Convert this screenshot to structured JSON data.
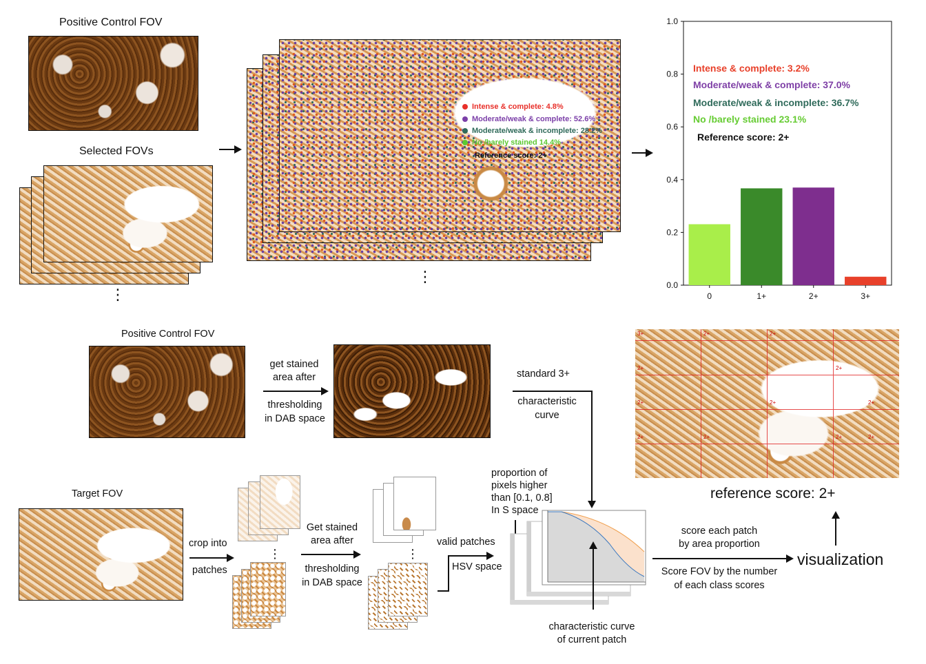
{
  "top": {
    "positive_control_title": "Positive Control FOV",
    "selected_fovs_title": "Selected FOVs",
    "ellipsis": "⋮",
    "overlay_legend": [
      {
        "label": "Intense & complete: 4.8%",
        "color": "#e8302a"
      },
      {
        "label": "Moderate/weak & complete: 52.6%",
        "color": "#7b3fa8"
      },
      {
        "label": "Moderate/weak & incomplete: 28.2%",
        "color": "#2f6a5a"
      },
      {
        "label": "No /barely stained 14.4%",
        "color": "#5cc832"
      }
    ],
    "overlay_reference": "Reference score: 2+"
  },
  "chart_data": {
    "type": "bar",
    "categories": [
      "0",
      "1+",
      "2+",
      "3+"
    ],
    "values": [
      0.231,
      0.367,
      0.37,
      0.032
    ],
    "colors": [
      "#a9ee4a",
      "#3a8a2a",
      "#7e2e8e",
      "#e8402a"
    ],
    "ylim": [
      0,
      1.0
    ],
    "yticks": [
      "0.0",
      "0.2",
      "0.4",
      "0.6",
      "0.8",
      "1.0"
    ],
    "annotations": [
      {
        "text": "Intense & complete: 3.2%",
        "color": "#e8402a"
      },
      {
        "text": "Moderate/weak & complete: 37.0%",
        "color": "#7e3fa6"
      },
      {
        "text": "Moderate/weak & incomplete: 36.7%",
        "color": "#2f6a5a"
      },
      {
        "text": "No /barely stained 23.1%",
        "color": "#66cc33"
      },
      {
        "text": "Reference score: 2+",
        "color": "#111111"
      }
    ]
  },
  "bottom": {
    "positive_control_title": "Positive Control FOV",
    "get_stained_line1": "get stained",
    "get_stained_line2": "area after",
    "thresholding_line1": "thresholding",
    "thresholding_line2": "in DAB space",
    "standard_3plus": "standard 3+",
    "characteristic_line1": "characteristic",
    "characteristic_line2": "curve",
    "target_title": "Target FOV",
    "crop_into": "crop into",
    "patches": "patches",
    "get_stained2_line1": "Get stained",
    "get_stained2_line2": "area after",
    "thresholding2_line1": "thresholding",
    "thresholding2_line2": "in DAB space",
    "valid_patches": "valid patches",
    "hsv_space": "HSV space",
    "proportion_line1": "proportion of",
    "proportion_line2": "pixels higher",
    "proportion_line3": "than [0.1, 0.8]",
    "proportion_line4": "In S space",
    "char_curve_current_line1": "characteristic curve",
    "char_curve_current_line2": "of current patch",
    "score_each_line1": "score each patch",
    "score_each_line2": "by area proportion",
    "score_fov_line1": "Score FOV by the number",
    "score_fov_line2": "of each class scores",
    "visualization": "visualization",
    "reference_score": "reference score: 2+",
    "grid_scores": [
      "3+",
      "2+",
      "2+",
      "2+",
      "2+",
      "2+",
      "2+",
      "2+",
      "2+",
      "2+",
      "2+",
      "2+"
    ]
  }
}
